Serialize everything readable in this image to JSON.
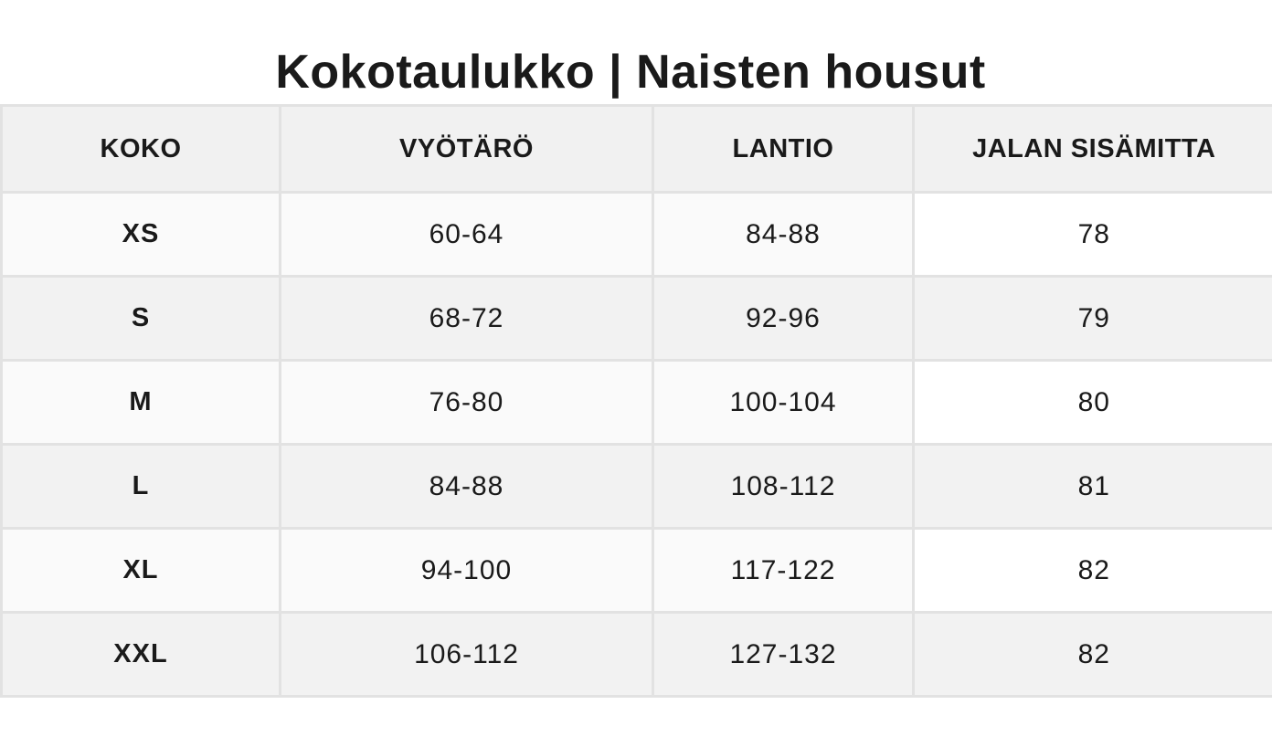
{
  "title": "Kokotaulukko | Naisten housut",
  "table": {
    "headers": [
      "KOKO",
      "VYÖTÄRÖ",
      "LANTIO",
      "JALAN SISÄMITTA"
    ],
    "rows": [
      [
        "XS",
        "60-64",
        "84-88",
        "78"
      ],
      [
        "S",
        "68-72",
        "92-96",
        "79"
      ],
      [
        "M",
        "76-80",
        "100-104",
        "80"
      ],
      [
        "L",
        "84-88",
        "108-112",
        "81"
      ],
      [
        "XL",
        "94-100",
        "117-122",
        "82"
      ],
      [
        "XXL",
        "106-112",
        "127-132",
        "82"
      ]
    ]
  },
  "colors": {
    "header_bg": "#f1f1f1",
    "row_light": "#fafafa",
    "row_alt": "#f2f2f2",
    "border": "#e2e2e2",
    "text": "#1a1a1a"
  }
}
